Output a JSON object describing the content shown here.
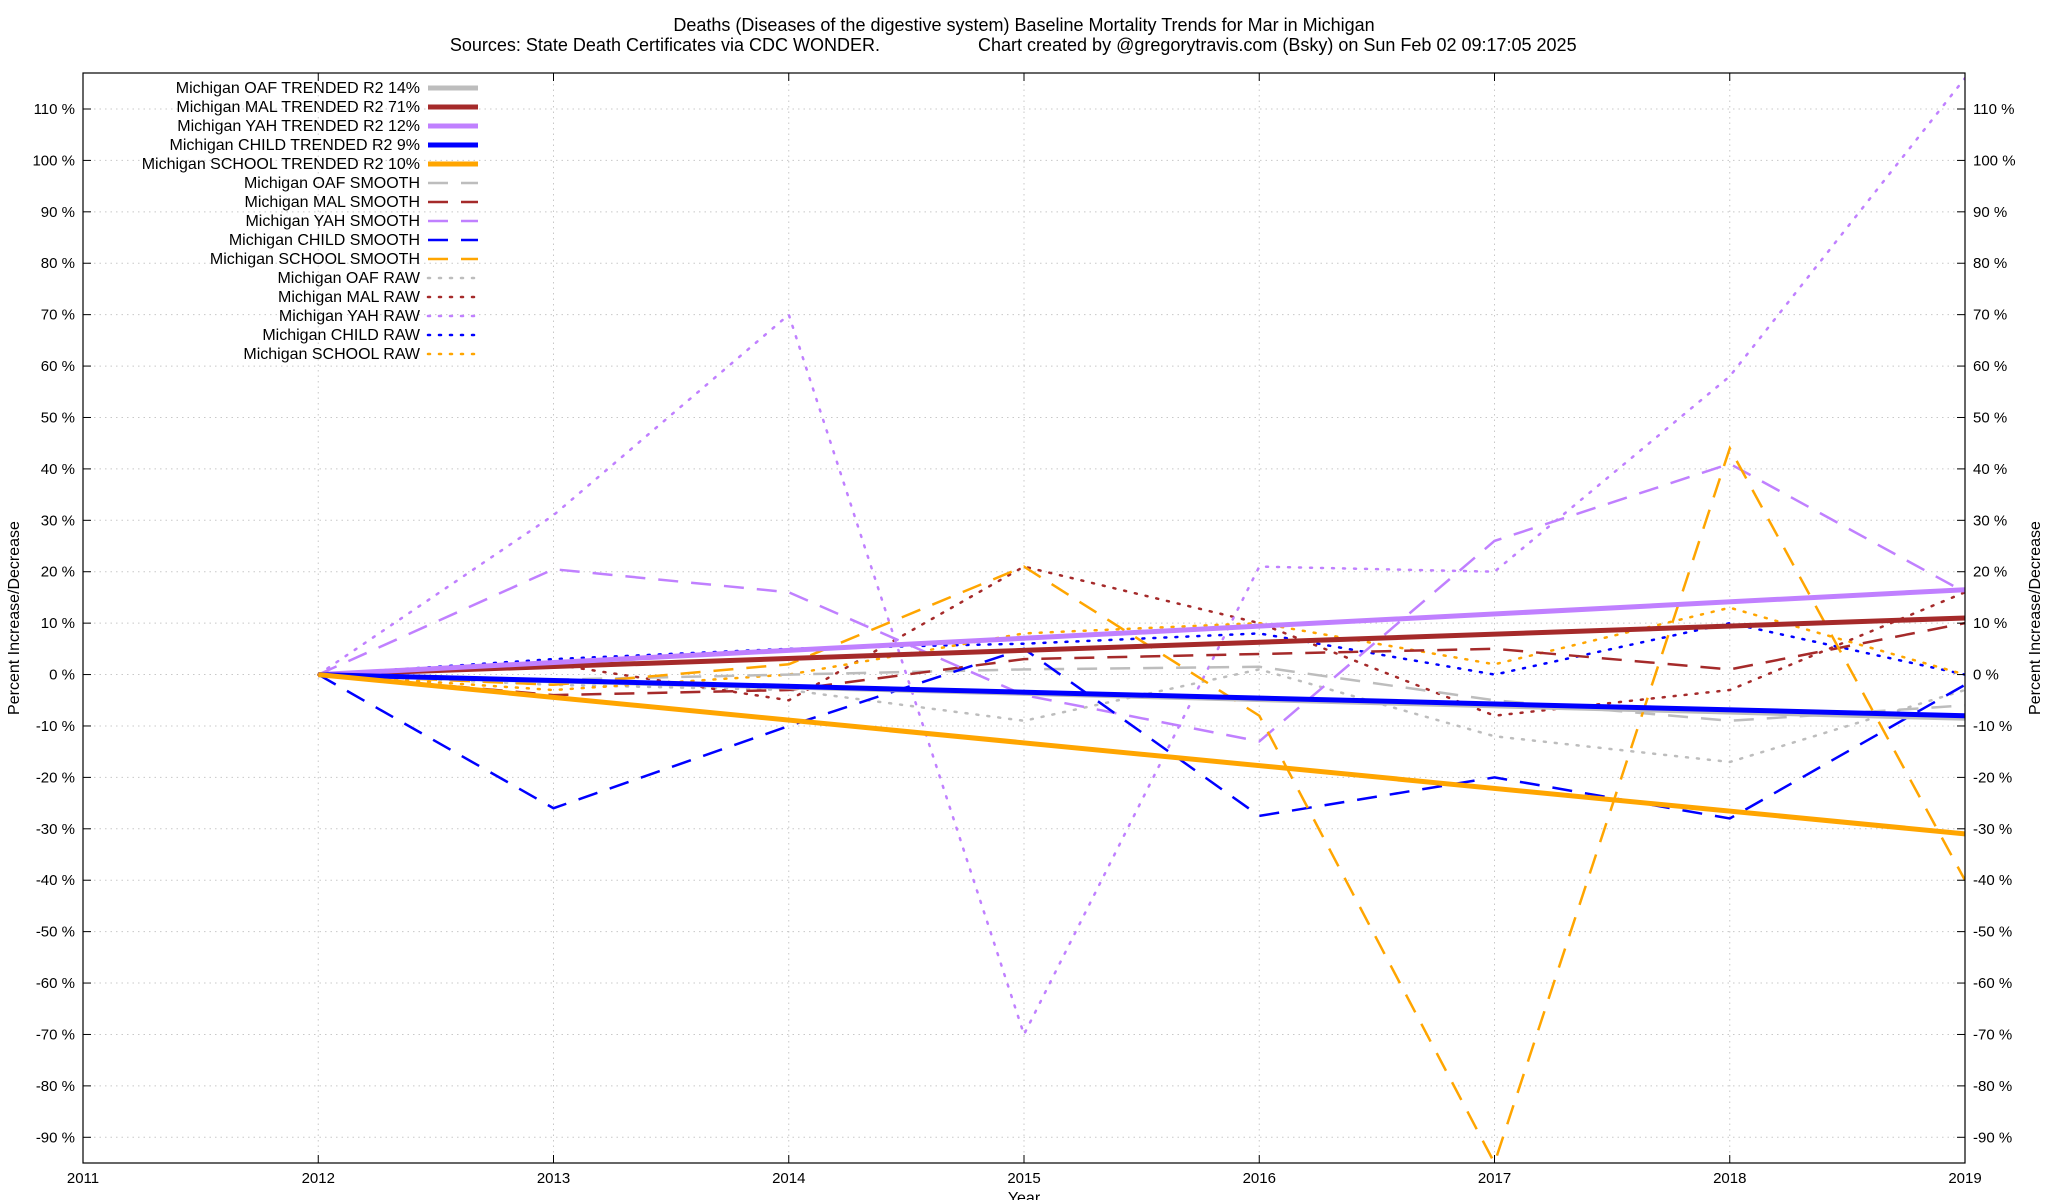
{
  "chart_data": {
    "type": "line",
    "title": "Deaths (Diseases of the digestive system)  Baseline Mortality Trends for Mar in Michigan",
    "subtitle_left": "Sources: State Death Certificates via CDC WONDER.",
    "subtitle_right": "Chart created by @gregorytravis.com (Bsky) on Sun Feb 02 09:17:05 2025",
    "xlabel": "Year",
    "ylabel": "Percent Increase/Decrease",
    "y2label": "Percent Increase/Decrease",
    "xlim": [
      2011,
      2019
    ],
    "ylim": [
      -95,
      117
    ],
    "x_ticks": [
      "2011",
      "2012",
      "2013",
      "2014",
      "2015",
      "2016",
      "2017",
      "2018",
      "2019"
    ],
    "y_ticks": [
      "110 %",
      "100 %",
      "90 %",
      "80 %",
      "70 %",
      "60 %",
      "50 %",
      "40 %",
      "30 %",
      "20 %",
      "10 %",
      "0 %",
      "-10 %",
      "-20 %",
      "-30 %",
      "-40 %",
      "-50 %",
      "-60 %",
      "-70 %",
      "-80 %",
      "-90 %"
    ],
    "y_tick_values": [
      110,
      100,
      90,
      80,
      70,
      60,
      50,
      40,
      30,
      20,
      10,
      0,
      -10,
      -20,
      -30,
      -40,
      -50,
      -60,
      -70,
      -80,
      -90
    ],
    "grid": true,
    "legend_position": "top-left",
    "series": [
      {
        "name": "Michigan OAF TRENDED R2  14%",
        "style": "solid",
        "color": "#bdbdbd",
        "x": [
          2012,
          2019
        ],
        "y": [
          0,
          -8.5
        ]
      },
      {
        "name": "Michigan MAL TRENDED R2  71%",
        "style": "solid",
        "color": "#a52a2a",
        "x": [
          2012,
          2019
        ],
        "y": [
          0,
          11
        ]
      },
      {
        "name": "Michigan YAH TRENDED R2  12%",
        "style": "solid",
        "color": "#c080ff",
        "x": [
          2012,
          2019
        ],
        "y": [
          0,
          16.5
        ]
      },
      {
        "name": "Michigan CHILD TRENDED R2   9%",
        "style": "solid",
        "color": "#0000ff",
        "x": [
          2012,
          2019
        ],
        "y": [
          0,
          -8
        ]
      },
      {
        "name": "Michigan SCHOOL TRENDED R2  10%",
        "style": "solid",
        "color": "#ffa500",
        "x": [
          2012,
          2019
        ],
        "y": [
          0,
          -31
        ]
      },
      {
        "name": "Michigan OAF SMOOTH",
        "style": "dashed",
        "color": "#bdbdbd",
        "x": [
          2012,
          2013,
          2014,
          2015,
          2016,
          2017,
          2018,
          2019
        ],
        "y": [
          0,
          -1,
          0,
          1,
          1.5,
          -5,
          -9,
          -6
        ]
      },
      {
        "name": "Michigan MAL SMOOTH",
        "style": "dashed",
        "color": "#a52a2a",
        "x": [
          2012,
          2013,
          2014,
          2015,
          2016,
          2017,
          2018,
          2019
        ],
        "y": [
          0,
          -4,
          -3,
          3,
          4,
          5,
          1,
          10
        ]
      },
      {
        "name": "Michigan YAH SMOOTH",
        "style": "dashed",
        "color": "#c080ff",
        "x": [
          2012,
          2013,
          2014,
          2015,
          2016,
          2017,
          2018,
          2019
        ],
        "y": [
          0,
          20.5,
          16,
          -4,
          -13,
          26,
          41,
          16
        ]
      },
      {
        "name": "Michigan CHILD SMOOTH",
        "style": "dashed",
        "color": "#0000ff",
        "x": [
          2012,
          2013,
          2014,
          2015,
          2016,
          2017,
          2018,
          2019
        ],
        "y": [
          0,
          -26,
          -10,
          5,
          -27.5,
          -20,
          -28,
          -2
        ]
      },
      {
        "name": "Michigan SCHOOL SMOOTH",
        "style": "dashed",
        "color": "#ffa500",
        "x": [
          2012,
          2013,
          2014,
          2015,
          2016,
          2017,
          2018,
          2019
        ],
        "y": [
          0,
          -2,
          2,
          21,
          -8,
          -95,
          44,
          -40
        ]
      },
      {
        "name": "Michigan OAF RAW",
        "style": "dotted",
        "color": "#bdbdbd",
        "x": [
          2012,
          2013,
          2014,
          2015,
          2016,
          2017,
          2018,
          2019
        ],
        "y": [
          0,
          -2,
          -3,
          -9,
          1,
          -12,
          -17,
          -3
        ]
      },
      {
        "name": "Michigan MAL RAW",
        "style": "dotted",
        "color": "#a52a2a",
        "x": [
          2012,
          2013,
          2014,
          2015,
          2016,
          2017,
          2018,
          2019
        ],
        "y": [
          0,
          2,
          -5,
          21,
          10,
          -8,
          -3,
          16
        ]
      },
      {
        "name": "Michigan YAH RAW",
        "style": "dotted",
        "color": "#c080ff",
        "x": [
          2012,
          2013,
          2014,
          2015,
          2016,
          2017,
          2018,
          2019
        ],
        "y": [
          0,
          31,
          70,
          -70,
          21,
          20,
          58,
          116
        ]
      },
      {
        "name": "Michigan CHILD RAW",
        "style": "dotted",
        "color": "#0000ff",
        "x": [
          2012,
          2013,
          2014,
          2015,
          2016,
          2017,
          2018,
          2019
        ],
        "y": [
          0,
          3,
          5,
          6,
          8,
          0,
          10,
          0
        ]
      },
      {
        "name": "Michigan SCHOOL RAW",
        "style": "dotted",
        "color": "#ffa500",
        "x": [
          2012,
          2013,
          2014,
          2015,
          2016,
          2017,
          2018,
          2019
        ],
        "y": [
          0,
          -3,
          0,
          8,
          10,
          2,
          13,
          0
        ]
      }
    ]
  }
}
